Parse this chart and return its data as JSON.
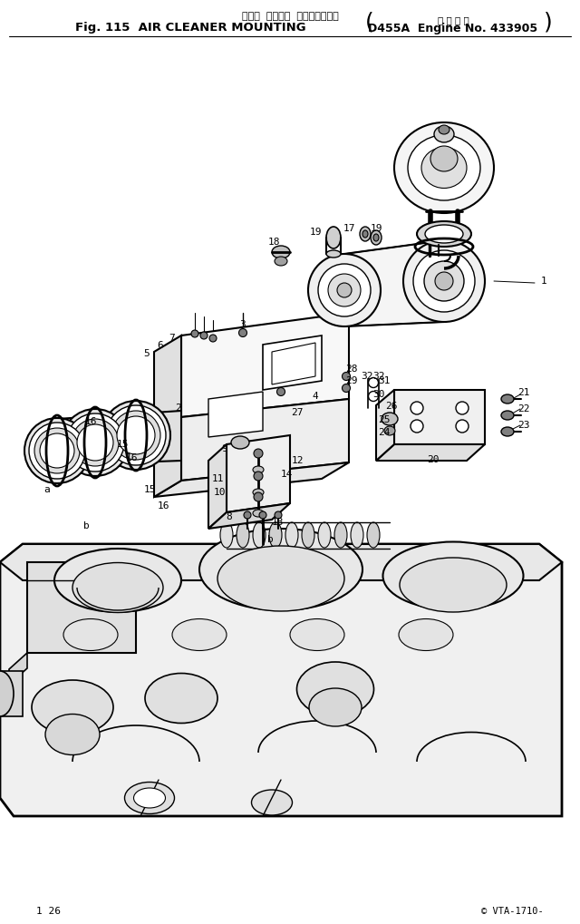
{
  "bg_color": "#ffffff",
  "fig_width": 6.4,
  "fig_height": 10.19,
  "dpi": 100,
  "title_line1": "エアー  クリーナ  マウンティング",
  "title_line2_left": "Fig. 115  AIR CLEANER MOUNTING",
  "title_line2_right": "D455A  Engine No. 433905",
  "title_japanese2": "適 用 号 機",
  "footer_left": "1 26",
  "footer_right": "© VTA-1710-"
}
